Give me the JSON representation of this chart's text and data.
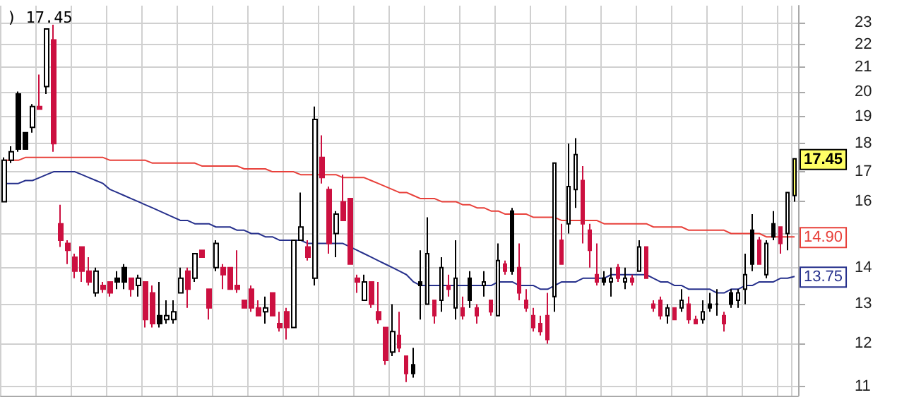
{
  "chart_data": {
    "type": "candlestick",
    "title": ") 17.45",
    "categories": [
      null,
      null,
      null,
      null,
      null,
      null,
      null,
      null,
      null,
      null,
      null,
      null,
      null,
      null,
      null,
      null,
      null,
      null,
      null,
      null,
      null,
      null,
      null,
      null,
      null,
      null,
      null,
      null,
      null,
      null,
      null,
      null,
      null,
      null,
      null,
      null,
      null,
      null,
      null,
      null,
      null,
      null,
      null,
      null,
      null,
      null,
      null,
      null,
      null,
      null,
      null,
      null,
      null,
      null,
      null,
      null,
      null,
      null,
      null,
      null,
      null,
      null,
      null,
      null,
      null,
      null,
      null,
      null,
      null,
      null,
      null,
      null,
      null,
      null,
      null,
      null,
      null,
      null,
      null,
      null,
      null,
      null,
      null,
      null,
      null,
      null,
      null,
      null,
      null,
      null,
      null,
      null,
      null,
      null,
      null,
      null,
      null,
      null,
      null,
      null,
      null,
      null,
      null,
      null,
      null,
      null,
      null,
      null,
      null,
      null,
      null,
      null,
      null
    ],
    "ohlc": [
      [
        16.0,
        17.5,
        16.0,
        17.4
      ],
      [
        17.4,
        17.9,
        17.3,
        17.7
      ],
      [
        19.9,
        20.0,
        17.7,
        17.8
      ],
      [
        18.4,
        18.4,
        17.8,
        17.8
      ],
      [
        18.6,
        19.5,
        18.4,
        19.4
      ],
      [
        19.4,
        20.7,
        19.3,
        19.3
      ],
      [
        20.2,
        22.7,
        19.9,
        22.7
      ],
      [
        22.2,
        22.9,
        17.7,
        18.0
      ],
      [
        15.3,
        15.9,
        14.6,
        14.8
      ],
      [
        14.7,
        14.8,
        14.1,
        14.5
      ],
      [
        14.3,
        14.4,
        13.7,
        13.9
      ],
      [
        14.6,
        14.6,
        13.6,
        13.9
      ],
      [
        13.9,
        14.3,
        13.5,
        13.6
      ],
      [
        13.3,
        14.0,
        13.2,
        13.9
      ],
      [
        13.5,
        13.6,
        13.3,
        13.4
      ],
      [
        13.6,
        13.6,
        13.2,
        13.3
      ],
      [
        13.7,
        13.9,
        13.4,
        13.6
      ],
      [
        14.0,
        14.1,
        13.4,
        13.6
      ],
      [
        13.7,
        13.7,
        13.2,
        13.4
      ],
      [
        13.5,
        13.8,
        13.2,
        13.7
      ],
      [
        13.6,
        13.6,
        12.4,
        12.6
      ],
      [
        13.3,
        13.5,
        12.4,
        12.5
      ],
      [
        12.7,
        13.6,
        12.4,
        12.5
      ],
      [
        12.6,
        13.1,
        12.5,
        12.7
      ],
      [
        12.6,
        13.1,
        12.5,
        12.8
      ],
      [
        13.3,
        14.0,
        13.3,
        13.7
      ],
      [
        13.9,
        14.0,
        12.9,
        13.4
      ],
      [
        13.7,
        14.4,
        13.6,
        14.4
      ],
      [
        14.5,
        14.5,
        14.3,
        14.3
      ],
      [
        13.4,
        13.4,
        12.6,
        12.9
      ],
      [
        14.0,
        14.8,
        13.9,
        14.7
      ],
      [
        14.0,
        14.1,
        13.4,
        13.8
      ],
      [
        14.0,
        14.0,
        13.4,
        13.4
      ],
      [
        13.5,
        14.5,
        13.3,
        13.4
      ],
      [
        13.1,
        13.1,
        12.9,
        12.9
      ],
      [
        13.4,
        13.5,
        12.8,
        12.9
      ],
      [
        12.9,
        13.1,
        12.7,
        12.7
      ],
      [
        12.8,
        13.2,
        12.5,
        12.9
      ],
      [
        13.3,
        13.3,
        12.7,
        12.7
      ],
      [
        12.5,
        12.8,
        12.3,
        12.4
      ],
      [
        12.8,
        12.9,
        12.1,
        12.4
      ],
      [
        12.4,
        14.8,
        12.4,
        14.8
      ],
      [
        14.8,
        16.3,
        14.8,
        15.2
      ],
      [
        14.6,
        14.8,
        14.2,
        14.3
      ],
      [
        13.7,
        19.4,
        13.5,
        18.9
      ],
      [
        17.5,
        18.3,
        16.6,
        16.8
      ],
      [
        16.4,
        16.5,
        14.4,
        14.7
      ],
      [
        15.0,
        15.7,
        14.3,
        15.6
      ],
      [
        16.0,
        16.9,
        15.4,
        15.4
      ],
      [
        16.1,
        16.1,
        14.1,
        14.1
      ],
      [
        13.7,
        13.8,
        13.3,
        13.6
      ],
      [
        13.1,
        13.8,
        13.1,
        13.6
      ],
      [
        13.6,
        13.6,
        12.9,
        13.0
      ],
      [
        12.8,
        13.6,
        12.5,
        12.6
      ],
      [
        12.4,
        12.4,
        11.5,
        11.6
      ],
      [
        11.8,
        13.0,
        11.7,
        12.3
      ],
      [
        12.2,
        12.8,
        11.8,
        11.9
      ],
      [
        11.7,
        11.7,
        11.1,
        11.3
      ],
      [
        11.5,
        11.9,
        11.2,
        11.3
      ],
      [
        13.6,
        14.5,
        12.6,
        13.5
      ],
      [
        13.0,
        15.5,
        13.0,
        14.4
      ],
      [
        13.1,
        13.1,
        12.5,
        12.7
      ],
      [
        13.1,
        14.3,
        12.8,
        14.0
      ],
      [
        13.5,
        13.8,
        13.2,
        13.4
      ],
      [
        12.9,
        14.8,
        12.6,
        13.7
      ],
      [
        12.9,
        13.2,
        12.6,
        12.7
      ],
      [
        13.7,
        13.9,
        12.9,
        13.1
      ],
      [
        12.9,
        13.0,
        12.5,
        12.7
      ],
      [
        13.5,
        13.9,
        13.2,
        13.6
      ],
      [
        13.1,
        13.1,
        12.7,
        12.8
      ],
      [
        12.7,
        14.7,
        12.7,
        14.2
      ],
      [
        14.1,
        14.2,
        13.8,
        13.9
      ],
      [
        15.7,
        15.8,
        13.8,
        13.9
      ],
      [
        14.0,
        14.7,
        13.1,
        13.3
      ],
      [
        13.1,
        13.4,
        12.8,
        12.9
      ],
      [
        12.7,
        12.9,
        12.3,
        12.4
      ],
      [
        12.5,
        12.7,
        12.2,
        12.3
      ],
      [
        12.7,
        13.3,
        12.0,
        12.1
      ],
      [
        13.2,
        17.3,
        12.8,
        17.3
      ],
      [
        14.8,
        15.3,
        14.1,
        14.1
      ],
      [
        15.3,
        18.0,
        15.0,
        16.5
      ],
      [
        16.4,
        18.2,
        15.8,
        17.6
      ],
      [
        16.7,
        17.2,
        14.7,
        15.3
      ],
      [
        15.1,
        15.3,
        14.0,
        14.5
      ],
      [
        13.8,
        14.7,
        13.5,
        13.6
      ],
      [
        13.7,
        13.9,
        13.5,
        13.6
      ],
      [
        13.6,
        14.0,
        13.2,
        13.7
      ],
      [
        14.0,
        14.1,
        13.6,
        13.7
      ],
      [
        13.6,
        14.0,
        13.4,
        13.7
      ],
      [
        13.7,
        13.8,
        13.5,
        13.6
      ],
      [
        13.9,
        14.8,
        13.9,
        14.6
      ],
      [
        14.6,
        14.6,
        13.7,
        13.7
      ],
      [
        13.0,
        13.1,
        12.8,
        12.9
      ],
      [
        13.1,
        13.2,
        12.6,
        12.7
      ],
      [
        12.7,
        13.0,
        12.5,
        12.9
      ],
      [
        12.9,
        12.9,
        12.6,
        12.6
      ],
      [
        12.9,
        13.4,
        12.8,
        13.1
      ],
      [
        13.0,
        13.2,
        12.5,
        12.6
      ],
      [
        12.6,
        12.7,
        12.5,
        12.5
      ],
      [
        12.6,
        13.1,
        12.5,
        12.8
      ],
      [
        13.0,
        13.3,
        12.8,
        12.9
      ],
      [
        13.0,
        13.4,
        12.7,
        13.0
      ],
      [
        12.7,
        12.8,
        12.3,
        12.5
      ],
      [
        13.3,
        13.4,
        12.9,
        13.0
      ],
      [
        13.1,
        13.4,
        12.9,
        13.3
      ],
      [
        13.4,
        14.4,
        13.0,
        13.8
      ],
      [
        15.1,
        15.6,
        13.9,
        14.1
      ],
      [
        14.8,
        14.9,
        14.1,
        14.1
      ],
      [
        13.8,
        14.8,
        13.7,
        14.7
      ],
      [
        15.3,
        15.7,
        14.8,
        14.9
      ],
      [
        15.2,
        15.2,
        14.4,
        14.7
      ],
      [
        15.0,
        16.3,
        14.5,
        16.3
      ],
      [
        16.2,
        17.45,
        16.0,
        17.45
      ]
    ],
    "colors": [
      "#ffffff",
      "#ffffff",
      "#000000",
      "#000000",
      "#ffffff",
      "#cc1040",
      "#ffffff",
      "#cc1040",
      "#cc1040",
      "#cc1040",
      "#cc1040",
      "#cc1040",
      "#cc1040",
      "#ffffff",
      "#cc1040",
      "#cc1040",
      "#000000",
      "#000000",
      "#cc1040",
      "#ffffff",
      "#cc1040",
      "#cc1040",
      "#000000",
      "#ffffff",
      "#ffffff",
      "#ffffff",
      "#cc1040",
      "#ffffff",
      "#cc1040",
      "#cc1040",
      "#ffffff",
      "#cc1040",
      "#cc1040",
      "#cc1040",
      "#cc1040",
      "#cc1040",
      "#cc1040",
      "#ffffff",
      "#cc1040",
      "#cc1040",
      "#cc1040",
      "#ffffff",
      "#ffffff",
      "#cc1040",
      "#ffffff",
      "#cc1040",
      "#cc1040",
      "#ffffff",
      "#cc1040",
      "#cc1040",
      "#cc1040",
      "#ffffff",
      "#cc1040",
      "#cc1040",
      "#cc1040",
      "#ffffff",
      "#cc1040",
      "#cc1040",
      "#000000",
      "#000000",
      "#ffffff",
      "#cc1040",
      "#ffffff",
      "#cc1040",
      "#ffffff",
      "#cc1040",
      "#000000",
      "#cc1040",
      "#ffffff",
      "#cc1040",
      "#ffffff",
      "#cc1040",
      "#000000",
      "#cc1040",
      "#cc1040",
      "#cc1040",
      "#cc1040",
      "#cc1040",
      "#ffffff",
      "#cc1040",
      "#ffffff",
      "#ffffff",
      "#cc1040",
      "#cc1040",
      "#cc1040",
      "#000000",
      "#ffffff",
      "#cc1040",
      "#ffffff",
      "#cc1040",
      "#ffffff",
      "#cc1040",
      "#cc1040",
      "#cc1040",
      "#ffffff",
      "#cc1040",
      "#ffffff",
      "#cc1040",
      "#cc1040",
      "#ffffff",
      "#000000",
      "#000000",
      "#cc1040",
      "#000000",
      "#ffffff",
      "#ffffff",
      "#000000",
      "#cc1040",
      "#ffffff",
      "#000000",
      "#cc1040",
      "#ffffff",
      "#ffff66"
    ],
    "series": [
      {
        "type": "line",
        "color": "#e8403a",
        "values": [
          17.4,
          17.4,
          17.4,
          17.5,
          17.5,
          17.5,
          17.5,
          17.5,
          17.5,
          17.5,
          17.5,
          17.5,
          17.5,
          17.5,
          17.5,
          17.4,
          17.4,
          17.4,
          17.4,
          17.4,
          17.4,
          17.3,
          17.3,
          17.3,
          17.3,
          17.3,
          17.3,
          17.3,
          17.2,
          17.2,
          17.2,
          17.2,
          17.2,
          17.2,
          17.1,
          17.1,
          17.1,
          17.1,
          17.0,
          17.0,
          17.0,
          17.0,
          16.9,
          16.9,
          16.9,
          16.9,
          16.9,
          16.9,
          16.8,
          16.8,
          16.8,
          16.8,
          16.7,
          16.6,
          16.5,
          16.4,
          16.3,
          16.3,
          16.2,
          16.1,
          16.1,
          16.1,
          16.0,
          16.0,
          16.0,
          15.9,
          15.9,
          15.8,
          15.8,
          15.7,
          15.7,
          15.6,
          15.6,
          15.6,
          15.6,
          15.5,
          15.5,
          15.5,
          15.5,
          15.4,
          15.4,
          15.4,
          15.4,
          15.4,
          15.4,
          15.3,
          15.3,
          15.3,
          15.3,
          15.3,
          15.3,
          15.3,
          15.2,
          15.2,
          15.2,
          15.2,
          15.2,
          15.1,
          15.1,
          15.1,
          15.1,
          15.1,
          15.1,
          15.0,
          15.0,
          15.0,
          15.0,
          15.0,
          14.9,
          14.9,
          14.9,
          14.9,
          14.9
        ],
        "value_labels": [
          null,
          null,
          null,
          null,
          null,
          null,
          null,
          null,
          null,
          null,
          null,
          null,
          null,
          null,
          null,
          null,
          null,
          null,
          null,
          null,
          null,
          null,
          null,
          null,
          null,
          null,
          null,
          null,
          null,
          null,
          null,
          null,
          null,
          null,
          null,
          null,
          null,
          null,
          null,
          null,
          null,
          null,
          null,
          null,
          null,
          null,
          null,
          null,
          null,
          null,
          null,
          null,
          null,
          null,
          null,
          null,
          null,
          null,
          null,
          null,
          null,
          null,
          null,
          null,
          null,
          null,
          null,
          null,
          null,
          null,
          null,
          null,
          null,
          null,
          null,
          null,
          null,
          null,
          null,
          null,
          null,
          null,
          null,
          null,
          null,
          null,
          null,
          null,
          null,
          null,
          null,
          null,
          null,
          null,
          null,
          null,
          null,
          null,
          null,
          null,
          null,
          null,
          null,
          null,
          null,
          null,
          null,
          null,
          null,
          null,
          null,
          null,
          "14.90"
        ]
      },
      {
        "type": "line",
        "color": "#26308c",
        "values": [
          16.6,
          16.6,
          16.6,
          16.7,
          16.7,
          16.8,
          16.9,
          17.0,
          17.0,
          17.0,
          17.0,
          16.9,
          16.8,
          16.7,
          16.6,
          16.4,
          16.3,
          16.2,
          16.1,
          16.0,
          15.9,
          15.8,
          15.7,
          15.6,
          15.5,
          15.4,
          15.4,
          15.3,
          15.3,
          15.3,
          15.2,
          15.2,
          15.2,
          15.1,
          15.1,
          15.0,
          15.0,
          14.9,
          14.9,
          14.8,
          14.8,
          14.8,
          14.8,
          14.7,
          14.7,
          14.7,
          14.7,
          14.7,
          14.7,
          14.6,
          14.5,
          14.4,
          14.3,
          14.2,
          14.1,
          14.0,
          13.9,
          13.8,
          13.6,
          13.5,
          13.5,
          13.5,
          13.5,
          13.5,
          13.5,
          13.5,
          13.5,
          13.5,
          13.5,
          13.5,
          13.6,
          13.6,
          13.6,
          13.5,
          13.5,
          13.5,
          13.4,
          13.4,
          13.5,
          13.6,
          13.6,
          13.6,
          13.7,
          13.7,
          13.7,
          13.7,
          13.8,
          13.8,
          13.8,
          13.8,
          13.8,
          13.8,
          13.7,
          13.6,
          13.6,
          13.5,
          13.5,
          13.4,
          13.4,
          13.4,
          13.4,
          13.3,
          13.3,
          13.4,
          13.4,
          13.5,
          13.5,
          13.6,
          13.6,
          13.6,
          13.7,
          13.7,
          13.75
        ],
        "value_labels": [
          null,
          null,
          null,
          null,
          null,
          null,
          null,
          null,
          null,
          null,
          null,
          null,
          null,
          null,
          null,
          null,
          null,
          null,
          null,
          null,
          null,
          null,
          null,
          null,
          null,
          null,
          null,
          null,
          null,
          null,
          null,
          null,
          null,
          null,
          null,
          null,
          null,
          null,
          null,
          null,
          null,
          null,
          null,
          null,
          null,
          null,
          null,
          null,
          null,
          null,
          null,
          null,
          null,
          null,
          null,
          null,
          null,
          null,
          null,
          null,
          null,
          null,
          null,
          null,
          null,
          null,
          null,
          null,
          null,
          null,
          null,
          null,
          null,
          null,
          null,
          null,
          null,
          null,
          null,
          null,
          null,
          null,
          null,
          null,
          null,
          null,
          null,
          null,
          null,
          null,
          null,
          null,
          null,
          null,
          null,
          null,
          null,
          null,
          null,
          null,
          null,
          null,
          null,
          null,
          null,
          null,
          null,
          null,
          null,
          null,
          null,
          null,
          "13.75"
        ]
      }
    ],
    "value_labels": [
      null,
      null,
      null,
      null,
      null,
      null,
      null,
      null,
      null,
      null,
      null,
      null,
      null,
      null,
      null,
      null,
      null,
      null,
      null,
      null,
      null,
      null,
      null,
      null,
      null,
      null,
      null,
      null,
      null,
      null,
      null,
      null,
      null,
      null,
      null,
      null,
      null,
      null,
      null,
      null,
      null,
      null,
      null,
      null,
      null,
      null,
      null,
      null,
      null,
      null,
      null,
      null,
      null,
      null,
      null,
      null,
      null,
      null,
      null,
      null,
      null,
      null,
      null,
      null,
      null,
      null,
      null,
      null,
      null,
      null,
      null,
      null,
      null,
      null,
      null,
      null,
      null,
      null,
      null,
      null,
      null,
      null,
      null,
      null,
      null,
      null,
      null,
      null,
      null,
      null,
      null,
      null,
      null,
      null,
      null,
      null,
      null,
      null,
      null,
      null,
      null,
      null,
      null,
      null,
      null,
      null,
      null,
      null,
      null,
      null,
      null,
      null,
      "17.45"
    ],
    "log": "y",
    "ylim": [
      10.8,
      23.8
    ],
    "yticks": [
      11,
      12,
      13,
      14,
      {
        "value": 15,
        "label": null
      },
      16,
      17,
      18,
      19,
      20,
      21,
      22,
      23
    ],
    "grid": true
  }
}
